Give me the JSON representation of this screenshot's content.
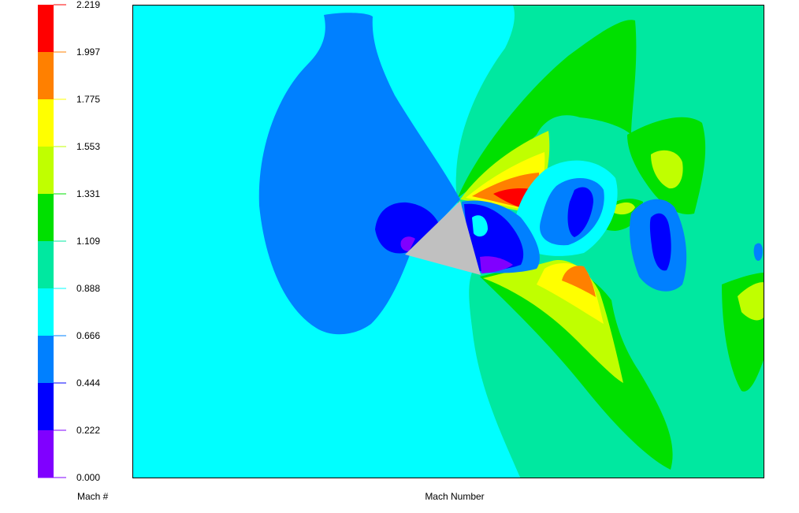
{
  "plot_title": "Mach Number",
  "legend": {
    "title": "Mach #",
    "ticks": [
      "2.219",
      "1.997",
      "1.775",
      "1.553",
      "1.331",
      "1.109",
      "0.888",
      "0.666",
      "0.444",
      "0.222",
      "0.000"
    ],
    "bands_top_to_bottom": [
      "#ff0000",
      "#ff8000",
      "#ffff00",
      "#c0ff00",
      "#00e000",
      "#00e8a0",
      "#00ffff",
      "#0080ff",
      "#0000ff",
      "#8000ff"
    ]
  },
  "colors": {
    "background_flow": "#00ffff",
    "body_gray": "#c0c0c0"
  }
}
